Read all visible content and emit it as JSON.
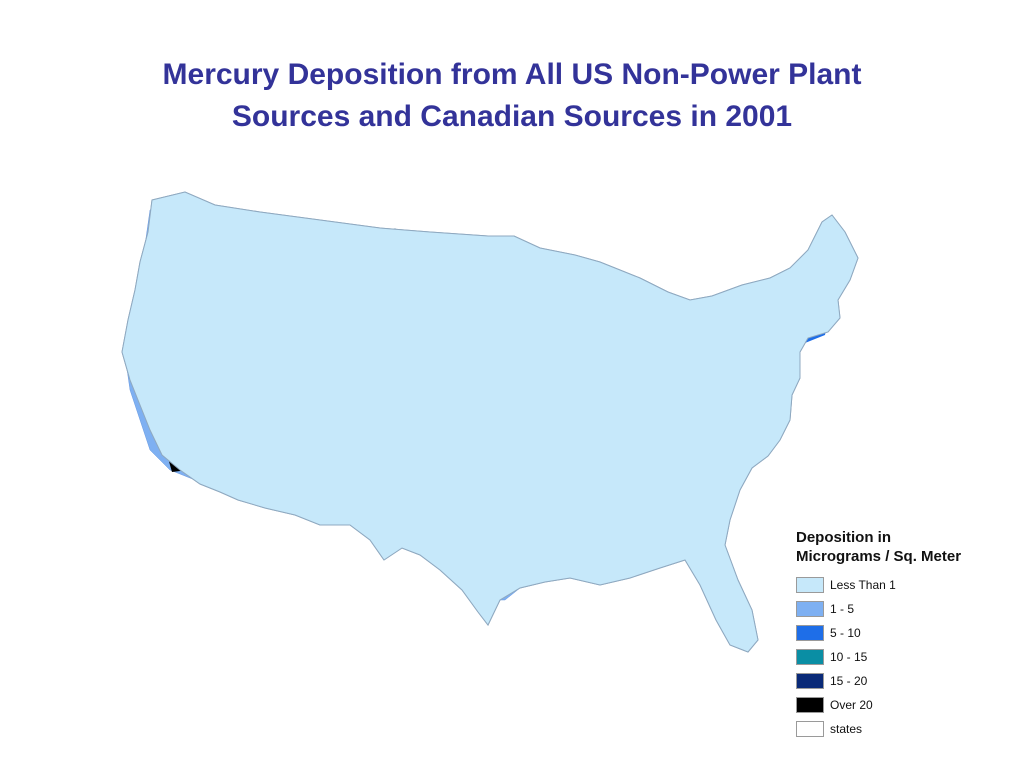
{
  "title": {
    "line1": "Mercury Deposition from All US Non-Power Plant",
    "line2": "Sources and Canadian Sources in 2001"
  },
  "legend": {
    "title_line1": "Deposition in",
    "title_line2": "Micrograms / Sq. Meter",
    "items": [
      {
        "label": "Less Than 1",
        "color": "#c6e8fa"
      },
      {
        "label": "1 - 5",
        "color": "#7eb0f2"
      },
      {
        "label": "5 - 10",
        "color": "#1e6ee8"
      },
      {
        "label": "10 - 15",
        "color": "#0a8ea4"
      },
      {
        "label": "15 - 20",
        "color": "#0a2a78"
      },
      {
        "label": "Over 20",
        "color": "#000000"
      },
      {
        "label": "states",
        "color": "#ffffff"
      }
    ]
  },
  "map": {
    "base_color": "#c6e8fa",
    "border_color": "#8fa9c0"
  }
}
